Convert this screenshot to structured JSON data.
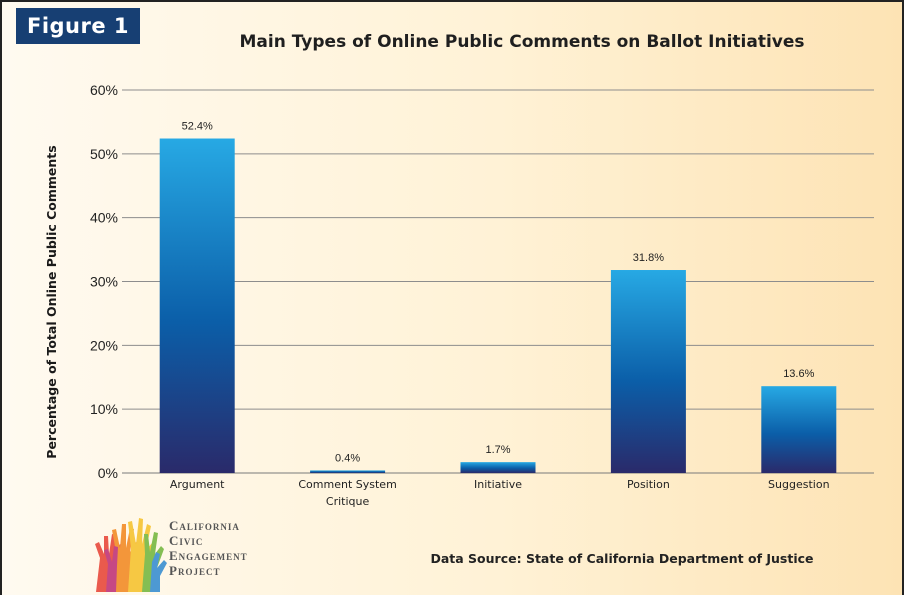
{
  "figure_label": "Figure 1",
  "chart_data": {
    "type": "bar",
    "title": "Main Types of Online Public Comments on Ballot Initiatives",
    "ylabel": "Percentage of Total Online Public Comments",
    "xlabel": "",
    "categories": [
      [
        "Argument"
      ],
      [
        "Comment System",
        "Critique"
      ],
      [
        "Initiative"
      ],
      [
        "Position"
      ],
      [
        "Suggestion"
      ]
    ],
    "values": [
      52.4,
      0.4,
      1.7,
      31.8,
      13.6
    ],
    "data_labels": [
      "52.4%",
      "0.4%",
      "1.7%",
      "31.8%",
      "13.6%"
    ],
    "ylim": [
      0,
      60
    ],
    "yticks": [
      "0%",
      "10%",
      "20%",
      "30%",
      "40%",
      "50%",
      "60%"
    ],
    "grid": true,
    "bar_gradient": [
      "#27a9e4",
      "#0b5ea8",
      "#2a2a6a"
    ]
  },
  "logo": {
    "lines": [
      "California",
      "Civic",
      "Engagement",
      "Project"
    ]
  },
  "source": "Data Source: State of California Department of Justice"
}
